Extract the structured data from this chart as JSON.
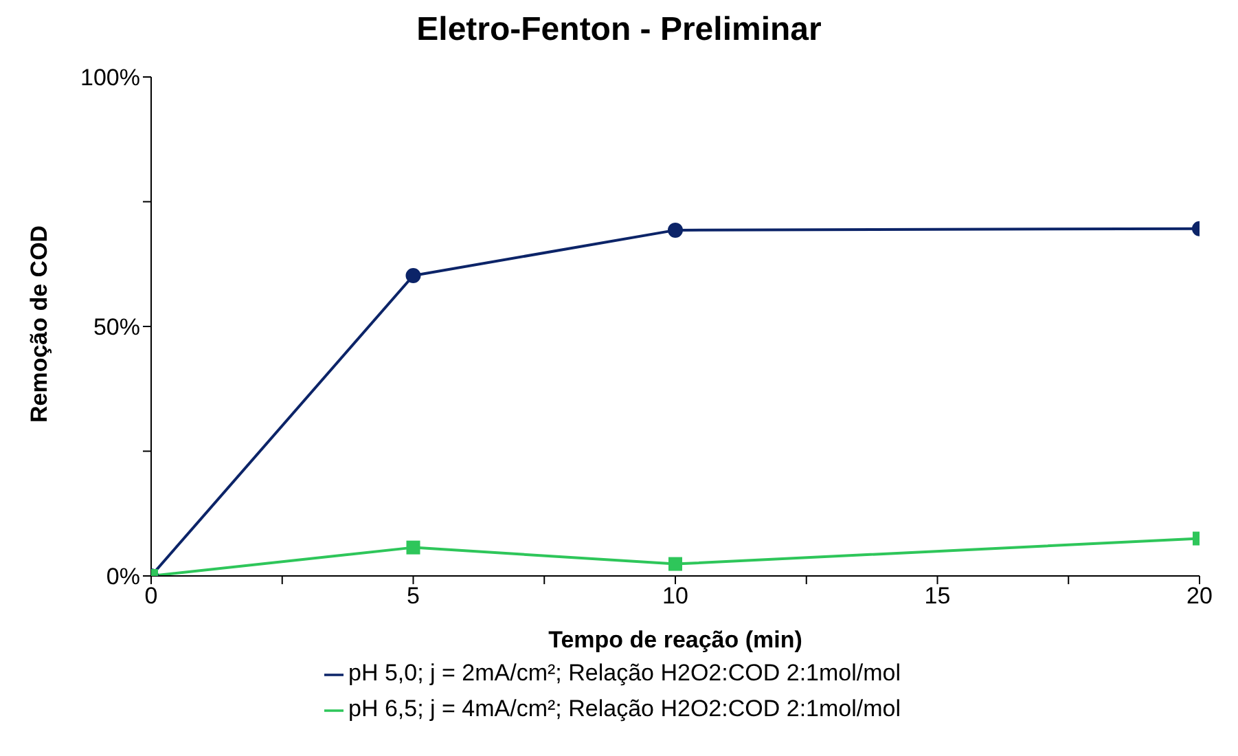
{
  "chart_data": {
    "type": "line",
    "title": "Eletro-Fenton - Preliminar",
    "xlabel": "Tempo de reação (min)",
    "ylabel": "Remoção de COD",
    "x": [
      0,
      5,
      10,
      20
    ],
    "series": [
      {
        "name": "pH 5,0; j = 2mA/cm²; Relação H2O2:COD 2:1mol/mol",
        "color": "#0c2468",
        "marker": "circle",
        "values": [
          0,
          60.2,
          69.3,
          69.6
        ]
      },
      {
        "name": "pH 6,5; j = 4mA/cm²; Relação H2O2:COD 2:1mol/mol",
        "color": "#2ec65a",
        "marker": "square",
        "values": [
          0,
          5.7,
          2.4,
          7.5
        ]
      }
    ],
    "xlim": [
      0,
      20
    ],
    "xticks": [
      0,
      {
        "value": 2.5,
        "label": null
      },
      5,
      {
        "value": 7.5,
        "label": null
      },
      10,
      {
        "value": 12.5,
        "label": null
      },
      15,
      {
        "value": 17.5,
        "label": null
      },
      20
    ],
    "ylim": [
      0,
      100
    ],
    "yticks": [
      {
        "value": 0,
        "label": "0%"
      },
      {
        "value": 25,
        "label": null
      },
      {
        "value": 50,
        "label": "50%"
      },
      {
        "value": 75,
        "label": null
      },
      {
        "value": 100,
        "label": "100%"
      }
    ],
    "grid": false,
    "legend": "bottom",
    "line_style": "solid"
  }
}
